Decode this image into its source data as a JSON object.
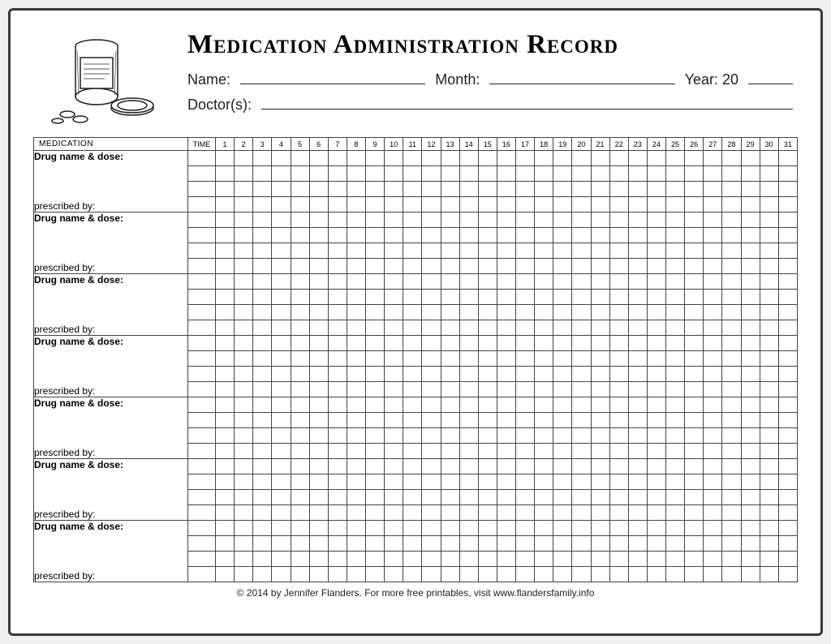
{
  "title": "Medication Administration Record",
  "fields": {
    "name_label": "Name:",
    "month_label": "Month:",
    "year_label": "Year: 20",
    "doctors_label": "Doctor(s):"
  },
  "table": {
    "medication_header": "MEDICATION",
    "time_header": "TIME",
    "days": [
      "1",
      "2",
      "3",
      "4",
      "5",
      "6",
      "7",
      "8",
      "9",
      "10",
      "11",
      "12",
      "13",
      "14",
      "15",
      "16",
      "17",
      "18",
      "19",
      "20",
      "21",
      "22",
      "23",
      "24",
      "25",
      "26",
      "27",
      "28",
      "29",
      "30",
      "31"
    ],
    "drug_label": "Drug name & dose:",
    "prescribed_label": "prescribed by:",
    "block_count": 7,
    "rows_per_block": 4
  },
  "footer": "© 2014 by Jennifer Flanders. For more free printables, visit www.flandersfamily.info",
  "colors": {
    "border": "#444444",
    "text": "#222222",
    "background": "#ffffff",
    "frame_border": "#3a3a3a"
  }
}
